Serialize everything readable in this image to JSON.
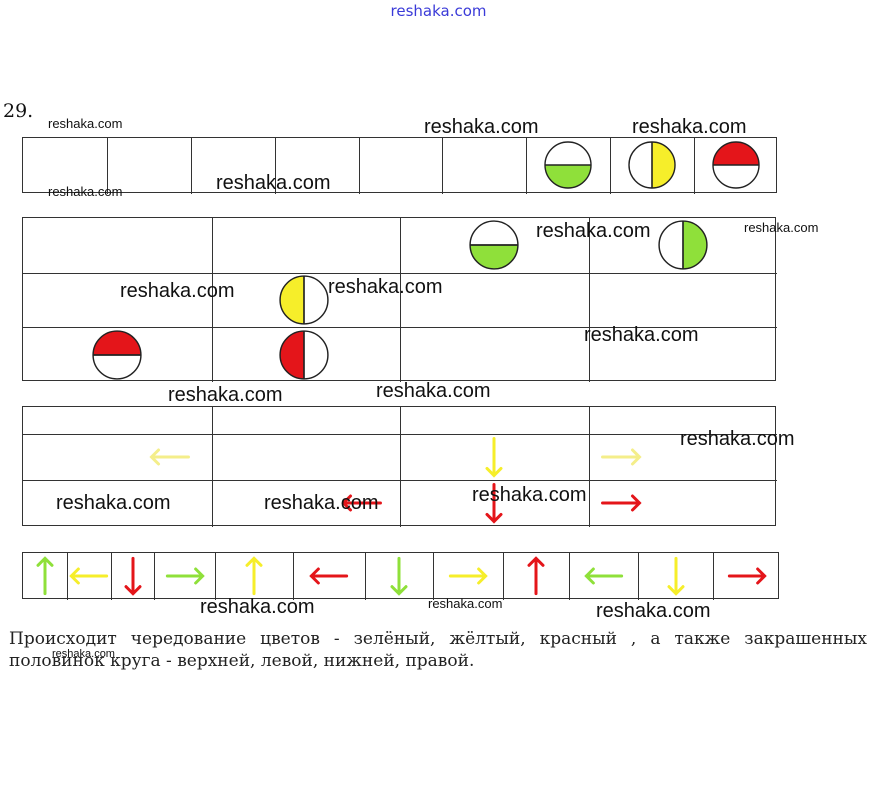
{
  "header": {
    "site": "reshaka.com"
  },
  "problem": {
    "number": "29."
  },
  "description": {
    "line1": "Происходит чередование цветов -   зелёный, жёлтый, красный  , а также закрашенных",
    "line2": "половинок круга - верхней, левой, нижней, правой."
  },
  "watermark": "reshaka.com",
  "colors": {
    "green": "#8fe03a",
    "yellow": "#f6ee2a",
    "red": "#e4151a",
    "faded_yellow": "#f4ee8a",
    "outline": "#222222"
  },
  "row1": {
    "cells": 9,
    "items": [
      {
        "cell": 6,
        "type": "circle",
        "half": "bottom",
        "color": "green"
      },
      {
        "cell": 7,
        "type": "circle",
        "half": "right",
        "color": "yellow"
      },
      {
        "cell": 8,
        "type": "circle",
        "half": "top",
        "color": "red"
      }
    ]
  },
  "grid2": {
    "cols": 4,
    "rows": 3,
    "items": [
      {
        "row": 0,
        "col": 2,
        "type": "circle",
        "half": "bottom",
        "color": "green"
      },
      {
        "row": 0,
        "col": 3,
        "type": "circle",
        "half": "right",
        "color": "green"
      },
      {
        "row": 1,
        "col": 1,
        "type": "circle",
        "half": "left",
        "color": "yellow"
      },
      {
        "row": 2,
        "col": 0,
        "type": "circle",
        "half": "top",
        "color": "red"
      },
      {
        "row": 2,
        "col": 1,
        "type": "circle",
        "half": "left",
        "color": "red"
      }
    ]
  },
  "grid3": {
    "cols": 4,
    "items": [
      {
        "row": 1,
        "col": 0,
        "type": "arrow",
        "dir": "left",
        "color": "faded_yellow"
      },
      {
        "row": 1,
        "col": 2,
        "type": "arrow",
        "dir": "down",
        "color": "yellow"
      },
      {
        "row": 1,
        "col": 3,
        "type": "arrow",
        "dir": "right",
        "color": "faded_yellow"
      },
      {
        "row": 2,
        "col": 1,
        "type": "arrow",
        "dir": "left",
        "color": "red"
      },
      {
        "row": 2,
        "col": 2,
        "type": "arrow",
        "dir": "down",
        "color": "red"
      },
      {
        "row": 2,
        "col": 3,
        "type": "arrow",
        "dir": "right",
        "color": "red"
      }
    ]
  },
  "row4": {
    "arrows": [
      {
        "dir": "up",
        "color": "green"
      },
      {
        "dir": "left",
        "color": "yellow"
      },
      {
        "dir": "down",
        "color": "red"
      },
      {
        "dir": "right",
        "color": "green"
      },
      {
        "dir": "up",
        "color": "yellow"
      },
      {
        "dir": "left",
        "color": "red"
      },
      {
        "dir": "down",
        "color": "green"
      },
      {
        "dir": "right",
        "color": "yellow"
      },
      {
        "dir": "up",
        "color": "red"
      },
      {
        "dir": "left",
        "color": "green"
      },
      {
        "dir": "down",
        "color": "yellow"
      },
      {
        "dir": "right",
        "color": "red"
      }
    ]
  }
}
